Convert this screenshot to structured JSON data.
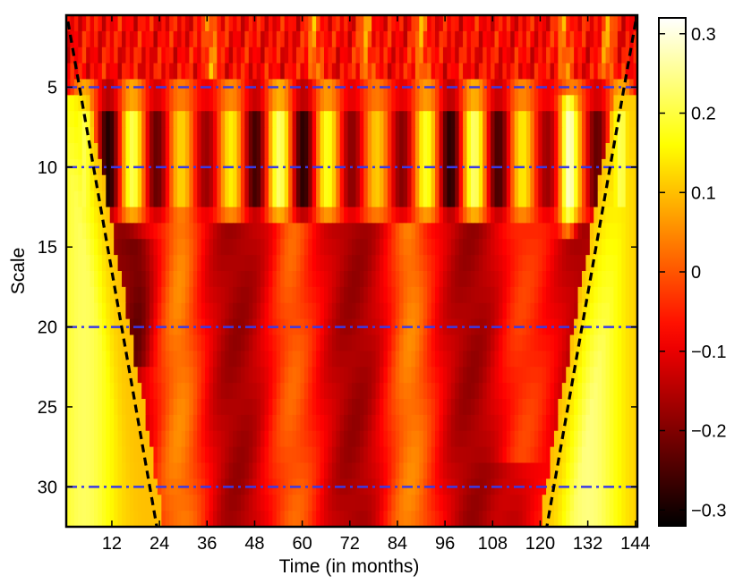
{
  "chart_data": {
    "type": "heatmap",
    "title": "",
    "xlabel": "Time (in months)",
    "ylabel": "Scale",
    "xlim": [
      1,
      144
    ],
    "ylim": [
      1,
      32
    ],
    "y_reversed": true,
    "x_ticks": [
      12,
      24,
      36,
      48,
      60,
      72,
      84,
      96,
      108,
      120,
      132,
      144
    ],
    "y_ticks": [
      5,
      10,
      15,
      20,
      25,
      30
    ],
    "colormap": "hot",
    "colorbar": {
      "clim": [
        -0.32,
        0.32
      ],
      "ticks": [
        0.3,
        0.2,
        0.1,
        0,
        -0.1,
        -0.2,
        -0.3
      ],
      "tick_labels": [
        "0.3",
        "0.2",
        "0.1",
        "0",
        "−0.1",
        "−0.2",
        "−0.3"
      ]
    },
    "reference_lines": {
      "style": "dash-dot",
      "color": "#3a3ae6",
      "scales": [
        5,
        10,
        20,
        30
      ]
    },
    "cone_of_influence": {
      "style": "dashed",
      "color": "#000000",
      "left": [
        [
          1,
          1
        ],
        [
          23,
          32
        ]
      ],
      "right": [
        [
          144,
          1
        ],
        [
          122,
          32
        ]
      ]
    },
    "pattern": {
      "fine_scale_rows": [
        1,
        4
      ],
      "band_scale_rows": [
        7,
        12
      ],
      "band_peaks_month": [
        5,
        17,
        29,
        41,
        53,
        65,
        77,
        89,
        101,
        113,
        125,
        137
      ],
      "warm_columns_month": [
        7,
        29,
        57,
        87,
        127,
        137
      ],
      "edge_warm_regions_month": [
        [
          1,
          20
        ],
        [
          125,
          144
        ]
      ]
    }
  }
}
